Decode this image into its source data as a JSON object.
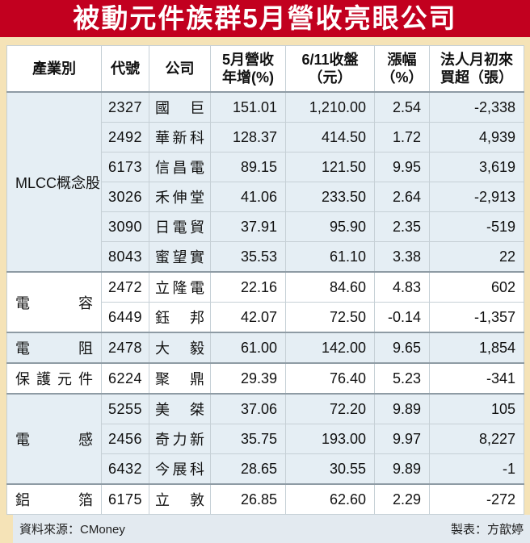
{
  "title": "被動元件族群5月營收亮眼公司",
  "colors": {
    "banner_red": "#c2001f",
    "page_cream": "#f5e3b7",
    "shaded_row_blue": "#e5eef4",
    "footer_band": "#e3eaf0",
    "group_divider": "#8e9ba4"
  },
  "table": {
    "headers": [
      "產業別",
      "代號",
      "公司",
      "5月營收\n年增(%)",
      "6/11收盤\n（元）",
      "漲幅\n（%）",
      "法人月初來\n買超（張）"
    ],
    "groups": [
      {
        "category": "MLCC概念股",
        "shaded": true,
        "rows": [
          [
            "2327",
            "國巨",
            "151.01",
            "1,210.00",
            "2.54",
            "-2,338"
          ],
          [
            "2492",
            "華新科",
            "128.37",
            "414.50",
            "1.72",
            "4,939"
          ],
          [
            "6173",
            "信昌電",
            "89.15",
            "121.50",
            "9.95",
            "3,619"
          ],
          [
            "3026",
            "禾伸堂",
            "41.06",
            "233.50",
            "2.64",
            "-2,913"
          ],
          [
            "3090",
            "日電貿",
            "37.91",
            "95.90",
            "2.35",
            "-519"
          ],
          [
            "8043",
            "蜜望實",
            "35.53",
            "61.10",
            "3.38",
            "22"
          ]
        ]
      },
      {
        "category": "電容",
        "shaded": false,
        "rows": [
          [
            "2472",
            "立隆電",
            "22.16",
            "84.60",
            "4.83",
            "602"
          ],
          [
            "6449",
            "鈺邦",
            "42.07",
            "72.50",
            "-0.14",
            "-1,357"
          ]
        ]
      },
      {
        "category": "電阻",
        "shaded": true,
        "rows": [
          [
            "2478",
            "大毅",
            "61.00",
            "142.00",
            "9.65",
            "1,854"
          ]
        ]
      },
      {
        "category": "保護元件",
        "shaded": false,
        "rows": [
          [
            "6224",
            "聚鼎",
            "29.39",
            "76.40",
            "5.23",
            "-341"
          ]
        ]
      },
      {
        "category": "電感",
        "shaded": true,
        "rows": [
          [
            "5255",
            "美桀",
            "37.06",
            "72.20",
            "9.89",
            "105"
          ],
          [
            "2456",
            "奇力新",
            "35.75",
            "193.00",
            "9.97",
            "8,227"
          ],
          [
            "6432",
            "今展科",
            "28.65",
            "30.55",
            "9.89",
            "-1"
          ]
        ]
      },
      {
        "category": "鋁箔",
        "shaded": false,
        "rows": [
          [
            "6175",
            "立敦",
            "26.85",
            "62.60",
            "2.29",
            "-272"
          ]
        ]
      }
    ]
  },
  "footer": {
    "source": "資料來源：CMoney",
    "credit": "製表：方歆婷"
  },
  "chart_data": {
    "type": "table",
    "title": "被動元件族群5月營收亮眼公司",
    "columns": [
      "產業別",
      "代號",
      "公司",
      "5月營收年增(%)",
      "6/11收盤(元)",
      "漲幅(%)",
      "法人月初來買超(張)"
    ],
    "rows": [
      [
        "MLCC概念股",
        "2327",
        "國巨",
        151.01,
        1210.0,
        2.54,
        -2338
      ],
      [
        "MLCC概念股",
        "2492",
        "華新科",
        128.37,
        414.5,
        1.72,
        4939
      ],
      [
        "MLCC概念股",
        "6173",
        "信昌電",
        89.15,
        121.5,
        9.95,
        3619
      ],
      [
        "MLCC概念股",
        "3026",
        "禾伸堂",
        41.06,
        233.5,
        2.64,
        -2913
      ],
      [
        "MLCC概念股",
        "3090",
        "日電貿",
        37.91,
        95.9,
        2.35,
        -519
      ],
      [
        "MLCC概念股",
        "8043",
        "蜜望實",
        35.53,
        61.1,
        3.38,
        22
      ],
      [
        "電容",
        "2472",
        "立隆電",
        22.16,
        84.6,
        4.83,
        602
      ],
      [
        "電容",
        "6449",
        "鈺邦",
        42.07,
        72.5,
        -0.14,
        -1357
      ],
      [
        "電阻",
        "2478",
        "大毅",
        61.0,
        142.0,
        9.65,
        1854
      ],
      [
        "保護元件",
        "6224",
        "聚鼎",
        29.39,
        76.4,
        5.23,
        -341
      ],
      [
        "電感",
        "5255",
        "美桀",
        37.06,
        72.2,
        9.89,
        105
      ],
      [
        "電感",
        "2456",
        "奇力新",
        35.75,
        193.0,
        9.97,
        8227
      ],
      [
        "電感",
        "6432",
        "今展科",
        28.65,
        30.55,
        9.89,
        -1
      ],
      [
        "鋁箔",
        "6175",
        "立敦",
        26.85,
        62.6,
        2.29,
        -272
      ]
    ],
    "source": "資料來源：CMoney",
    "credit": "製表：方歆婷"
  }
}
